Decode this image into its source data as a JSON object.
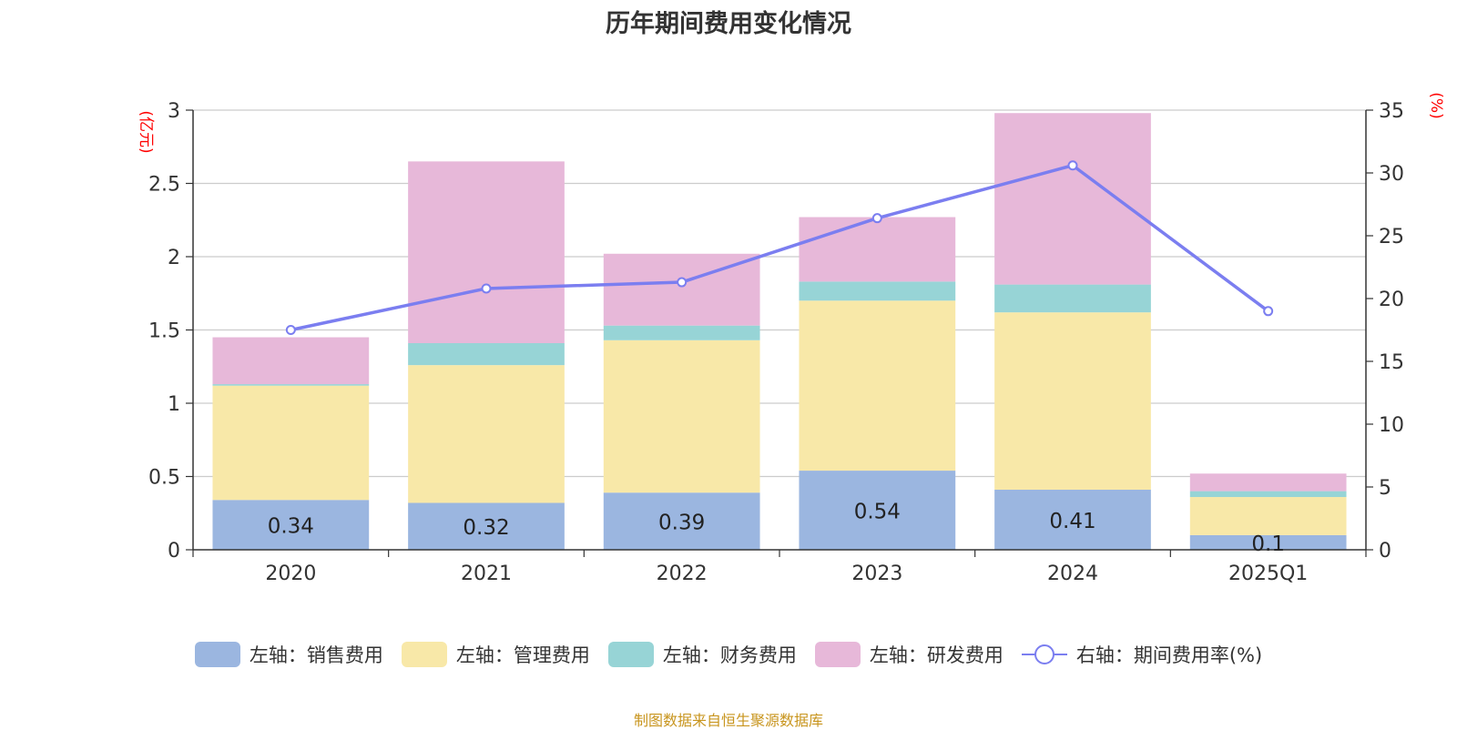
{
  "chart_data": {
    "type": "bar",
    "title": "历年期间费用变化情况",
    "stacked": true,
    "categories": [
      "2020",
      "2021",
      "2022",
      "2023",
      "2024",
      "2025Q1"
    ],
    "left_axis": {
      "unit_label": "(亿元)",
      "ylim": [
        0,
        3
      ],
      "ticks": [
        "0",
        "0.5",
        "1",
        "1.5",
        "2",
        "2.5",
        "3"
      ]
    },
    "right_axis": {
      "unit_label": "(%)",
      "ylim": [
        0,
        35
      ],
      "ticks": [
        "0",
        "5",
        "10",
        "15",
        "20",
        "25",
        "30",
        "35"
      ]
    },
    "series": [
      {
        "name": "左轴：销售费用",
        "kind": "bar",
        "axis": "left",
        "color": "#9bb6e0",
        "values": [
          0.34,
          0.32,
          0.39,
          0.54,
          0.41,
          0.1
        ],
        "labels": [
          "0.34",
          "0.32",
          "0.39",
          "0.54",
          "0.41",
          "0.1"
        ]
      },
      {
        "name": "左轴：管理费用",
        "kind": "bar",
        "axis": "left",
        "color": "#f8e8a8",
        "values": [
          0.78,
          0.94,
          1.04,
          1.16,
          1.21,
          0.26
        ]
      },
      {
        "name": "左轴：财务费用",
        "kind": "bar",
        "axis": "left",
        "color": "#97d4d6",
        "values": [
          0.01,
          0.15,
          0.1,
          0.13,
          0.19,
          0.04
        ]
      },
      {
        "name": "左轴：研发费用",
        "kind": "bar",
        "axis": "left",
        "color": "#e7b8d9",
        "values": [
          0.32,
          1.24,
          0.49,
          0.44,
          1.17,
          0.12
        ]
      },
      {
        "name": "右轴：期间费用率(%)",
        "kind": "line",
        "axis": "right",
        "color": "#7b7ef0",
        "values": [
          17.5,
          20.8,
          21.3,
          26.4,
          30.6,
          19.0
        ]
      }
    ],
    "grid": true,
    "legend_position": "bottom"
  },
  "footer": {
    "source": "制图数据来自恒生聚源数据库"
  }
}
